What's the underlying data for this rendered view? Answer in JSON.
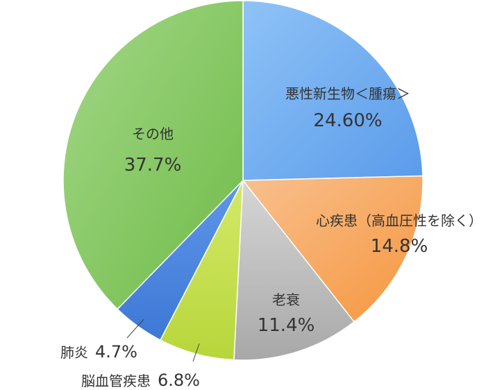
{
  "chart_data": {
    "type": "pie",
    "title": "",
    "slices": [
      {
        "label": "悪性新生物＜腫瘍＞",
        "value": 24.6,
        "display": "24.60%",
        "color": "#6aa8f0"
      },
      {
        "label": "心疾患（高血圧性を除く）",
        "value": 14.8,
        "display": "14.8%",
        "color": "#f7a75e"
      },
      {
        "label": "老衰",
        "value": 11.4,
        "display": "11.4%",
        "color": "#b5b5b5"
      },
      {
        "label": "脳血管疾患",
        "value": 6.8,
        "display": "6.8%",
        "color": "#c2df4a"
      },
      {
        "label": "肺炎",
        "value": 4.7,
        "display": "4.7%",
        "color": "#4a86e0"
      },
      {
        "label": "その他",
        "value": 37.7,
        "display": "37.7%",
        "color": "#80c55e"
      }
    ]
  }
}
